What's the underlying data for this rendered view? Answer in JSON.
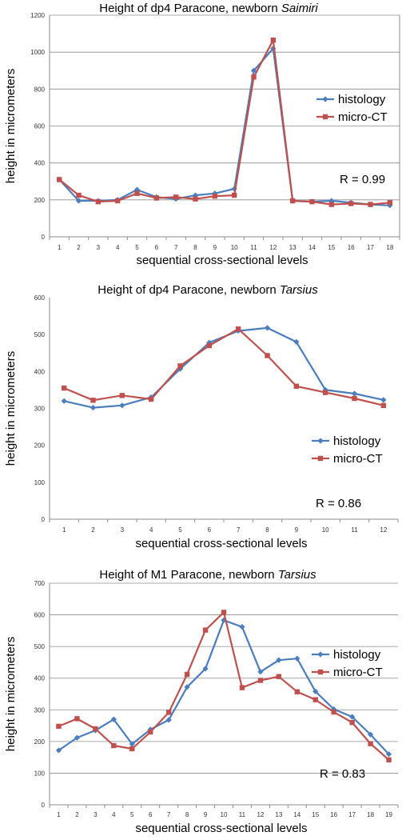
{
  "chart_data": [
    {
      "type": "line",
      "title_prefix": "Height of dp4 Paracone, newborn ",
      "title_italic": "Saimiri",
      "xlabel": "sequential cross-sectional levels",
      "ylabel": "height in micrometers",
      "categories": [
        "1",
        "2",
        "3",
        "4",
        "5",
        "6",
        "7",
        "8",
        "9",
        "10",
        "11",
        "12",
        "13",
        "14",
        "15",
        "16",
        "17",
        "18"
      ],
      "ylim": [
        0,
        1200
      ],
      "yticks": [
        "0",
        "200",
        "400",
        "600",
        "800",
        "1000",
        "1200"
      ],
      "grid": true,
      "legend_position": "right",
      "annotation": "R = 0.99",
      "series": [
        {
          "name": "histology",
          "color": "#4a7ebf",
          "marker": "diamond",
          "values": [
            310,
            195,
            195,
            200,
            255,
            215,
            205,
            225,
            235,
            260,
            900,
            1020,
            195,
            190,
            195,
            185,
            175,
            170
          ]
        },
        {
          "name": "micro-CT",
          "color": "#c0504d",
          "marker": "square",
          "values": [
            310,
            225,
            190,
            195,
            235,
            210,
            215,
            205,
            220,
            225,
            865,
            1065,
            195,
            190,
            175,
            180,
            175,
            185
          ]
        }
      ]
    },
    {
      "type": "line",
      "title_prefix": "Height of dp4 Paracone, newborn ",
      "title_italic": "Tarsius",
      "xlabel": "sequential cross-sectional levels",
      "ylabel": "height in micrometers",
      "categories": [
        "1",
        "2",
        "3",
        "4",
        "5",
        "6",
        "7",
        "8",
        "9",
        "10",
        "11",
        "12"
      ],
      "ylim": [
        0,
        600
      ],
      "yticks": [
        "0",
        "100",
        "200",
        "300",
        "400",
        "500",
        "600"
      ],
      "grid": false,
      "legend_position": "right",
      "annotation": "R = 0.86",
      "series": [
        {
          "name": "histology",
          "color": "#4a7ebf",
          "marker": "diamond",
          "values": [
            320,
            302,
            308,
            330,
            407,
            478,
            510,
            518,
            480,
            350,
            340,
            323
          ]
        },
        {
          "name": "micro-CT",
          "color": "#c0504d",
          "marker": "square",
          "values": [
            355,
            322,
            335,
            325,
            415,
            470,
            515,
            443,
            360,
            343,
            327,
            308
          ]
        }
      ]
    },
    {
      "type": "line",
      "title_prefix": "Height of M1 Paracone, newborn ",
      "title_italic": "Tarsius",
      "xlabel": "sequential cross-sectional levels",
      "ylabel": "height in micrometers",
      "categories": [
        "1",
        "2",
        "3",
        "4",
        "5",
        "6",
        "7",
        "8",
        "9",
        "10",
        "11",
        "12",
        "13",
        "14",
        "15",
        "16",
        "17",
        "18",
        "19"
      ],
      "ylim": [
        0,
        700
      ],
      "yticks": [
        "0",
        "100",
        "200",
        "300",
        "400",
        "500",
        "600",
        "700"
      ],
      "grid": true,
      "legend_position": "right",
      "annotation": "R = 0.83",
      "series": [
        {
          "name": "histology",
          "color": "#4a7ebf",
          "marker": "diamond",
          "values": [
            172,
            212,
            235,
            270,
            192,
            238,
            268,
            372,
            430,
            583,
            562,
            420,
            457,
            462,
            358,
            302,
            278,
            222,
            160
          ]
        },
        {
          "name": "micro-CT",
          "color": "#c0504d",
          "marker": "square",
          "values": [
            248,
            272,
            240,
            187,
            177,
            230,
            292,
            412,
            552,
            608,
            370,
            393,
            405,
            357,
            332,
            293,
            260,
            193,
            142
          ]
        }
      ]
    }
  ]
}
